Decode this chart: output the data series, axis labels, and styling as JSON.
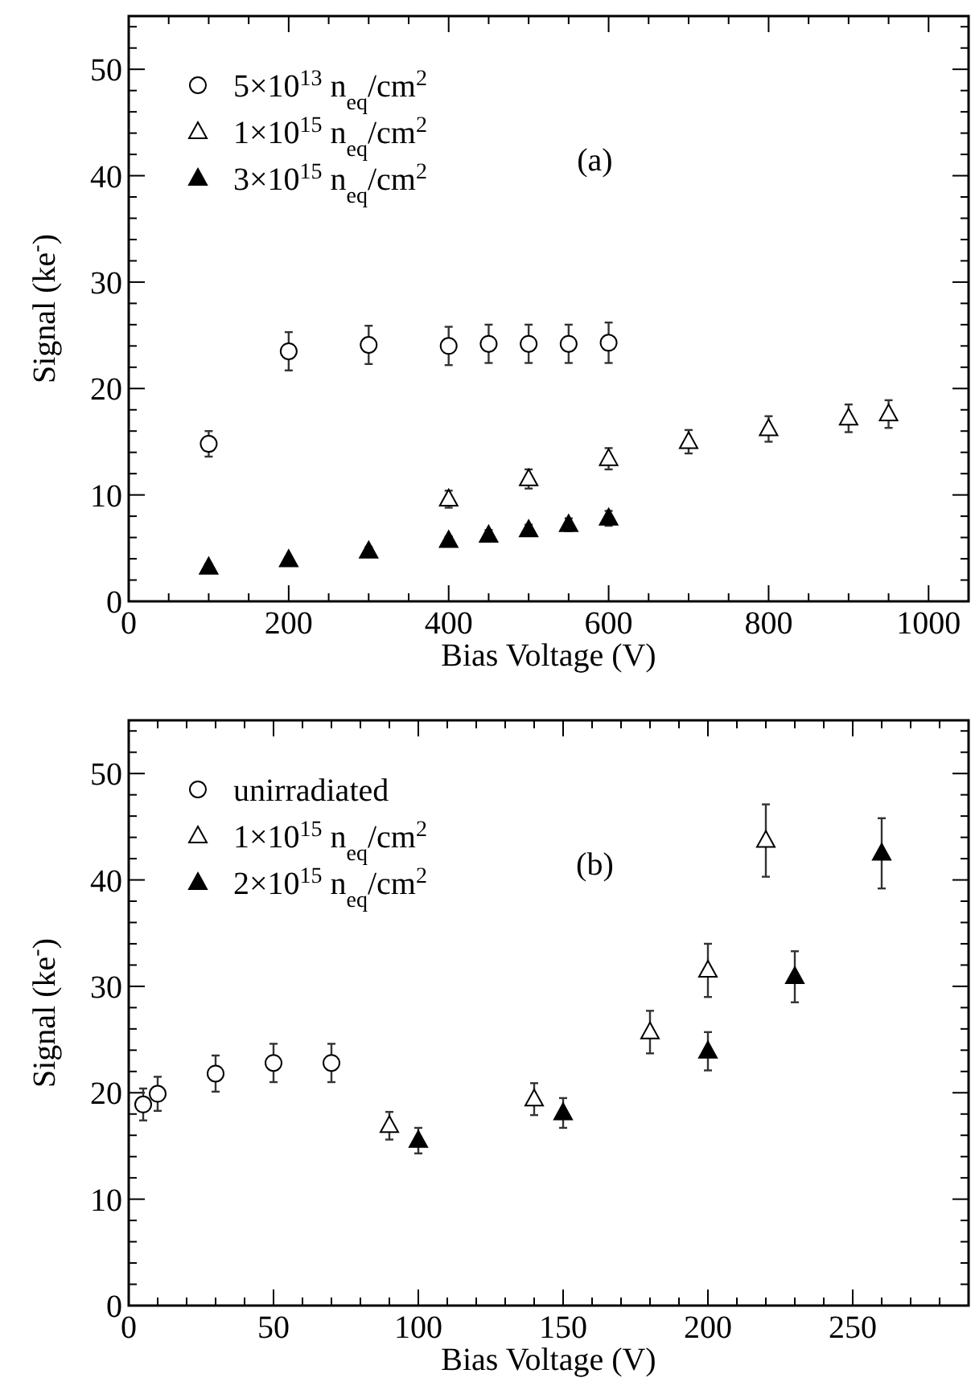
{
  "chart_data": [
    {
      "type": "scatter",
      "xlabel": "Bias Voltage (V)",
      "ylabel": "Signal (ke$^{-}$)",
      "annotations": [
        "(a)"
      ],
      "xlim": [
        0,
        1050
      ],
      "ylim": [
        0,
        55
      ],
      "xticks": [
        0,
        {
          "value": 50,
          "label": null
        },
        {
          "value": 100,
          "label": null
        },
        {
          "value": 150,
          "label": null
        },
        200,
        {
          "value": 250,
          "label": null
        },
        {
          "value": 300,
          "label": null
        },
        {
          "value": 350,
          "label": null
        },
        400,
        {
          "value": 450,
          "label": null
        },
        {
          "value": 500,
          "label": null
        },
        {
          "value": 550,
          "label": null
        },
        600,
        {
          "value": 650,
          "label": null
        },
        {
          "value": 700,
          "label": null
        },
        {
          "value": 750,
          "label": null
        },
        800,
        {
          "value": 850,
          "label": null
        },
        {
          "value": 900,
          "label": null
        },
        {
          "value": 950,
          "label": null
        },
        1000
      ],
      "yticks": [
        0,
        {
          "value": 2,
          "label": null
        },
        {
          "value": 4,
          "label": null
        },
        {
          "value": 6,
          "label": null
        },
        {
          "value": 8,
          "label": null
        },
        10,
        {
          "value": 12,
          "label": null
        },
        {
          "value": 14,
          "label": null
        },
        {
          "value": 16,
          "label": null
        },
        {
          "value": 18,
          "label": null
        },
        20,
        {
          "value": 22,
          "label": null
        },
        {
          "value": 24,
          "label": null
        },
        {
          "value": 26,
          "label": null
        },
        {
          "value": 28,
          "label": null
        },
        30,
        {
          "value": 32,
          "label": null
        },
        {
          "value": 34,
          "label": null
        },
        {
          "value": 36,
          "label": null
        },
        {
          "value": 38,
          "label": null
        },
        40,
        {
          "value": 42,
          "label": null
        },
        {
          "value": 44,
          "label": null
        },
        {
          "value": 46,
          "label": null
        },
        {
          "value": 48,
          "label": null
        },
        50,
        {
          "value": 52,
          "label": null
        },
        {
          "value": 54,
          "label": null
        }
      ],
      "legend": "top left",
      "grid": false,
      "series": [
        {
          "name": "5×10$^{13}$ n$_{eq}$/cm$^{2}$",
          "color": "#ffffff",
          "marker": "circle",
          "x": [
            100,
            200,
            300,
            400,
            450,
            500,
            550,
            600
          ],
          "values": [
            14.8,
            23.5,
            24.1,
            24.0,
            24.2,
            24.2,
            24.2,
            24.3
          ],
          "errors": [
            1.2,
            1.8,
            1.8,
            1.8,
            1.8,
            1.8,
            1.8,
            1.9
          ]
        },
        {
          "name": "1×10$^{15}$ n$_{eq}$/cm$^{2}$",
          "color": "#ffffff",
          "marker": "triangle",
          "x": [
            400,
            500,
            600,
            700,
            800,
            900,
            950
          ],
          "values": [
            9.6,
            11.5,
            13.4,
            15.0,
            16.2,
            17.2,
            17.6
          ],
          "errors": [
            0.8,
            0.9,
            1.0,
            1.1,
            1.2,
            1.3,
            1.3
          ]
        },
        {
          "name": "3×10$^{15}$ n$_{eq}$/cm$^{2}$",
          "color": "#000000",
          "marker": "triangle",
          "x": [
            100,
            200,
            300,
            400,
            450,
            500,
            550,
            600
          ],
          "values": [
            3.2,
            3.9,
            4.7,
            5.7,
            6.2,
            6.7,
            7.2,
            7.8
          ],
          "errors": [
            0.3,
            0.3,
            0.4,
            0.4,
            0.5,
            0.5,
            0.6,
            0.7
          ]
        }
      ]
    },
    {
      "type": "scatter",
      "xlabel": "Bias Voltage (V)",
      "ylabel": "Signal (ke$^{-}$)",
      "annotations": [
        "(b)"
      ],
      "xlim": [
        0,
        290
      ],
      "ylim": [
        0,
        55
      ],
      "xticks": [
        0,
        {
          "value": 10,
          "label": null
        },
        {
          "value": 20,
          "label": null
        },
        {
          "value": 30,
          "label": null
        },
        {
          "value": 40,
          "label": null
        },
        50,
        {
          "value": 60,
          "label": null
        },
        {
          "value": 70,
          "label": null
        },
        {
          "value": 80,
          "label": null
        },
        {
          "value": 90,
          "label": null
        },
        100,
        {
          "value": 110,
          "label": null
        },
        {
          "value": 120,
          "label": null
        },
        {
          "value": 130,
          "label": null
        },
        {
          "value": 140,
          "label": null
        },
        150,
        {
          "value": 160,
          "label": null
        },
        {
          "value": 170,
          "label": null
        },
        {
          "value": 180,
          "label": null
        },
        {
          "value": 190,
          "label": null
        },
        200,
        {
          "value": 210,
          "label": null
        },
        {
          "value": 220,
          "label": null
        },
        {
          "value": 230,
          "label": null
        },
        {
          "value": 240,
          "label": null
        },
        250,
        {
          "value": 260,
          "label": null
        },
        {
          "value": 270,
          "label": null
        },
        {
          "value": 280,
          "label": null
        }
      ],
      "yticks": [
        0,
        {
          "value": 2,
          "label": null
        },
        {
          "value": 4,
          "label": null
        },
        {
          "value": 6,
          "label": null
        },
        {
          "value": 8,
          "label": null
        },
        10,
        {
          "value": 12,
          "label": null
        },
        {
          "value": 14,
          "label": null
        },
        {
          "value": 16,
          "label": null
        },
        {
          "value": 18,
          "label": null
        },
        20,
        {
          "value": 22,
          "label": null
        },
        {
          "value": 24,
          "label": null
        },
        {
          "value": 26,
          "label": null
        },
        {
          "value": 28,
          "label": null
        },
        30,
        {
          "value": 32,
          "label": null
        },
        {
          "value": 34,
          "label": null
        },
        {
          "value": 36,
          "label": null
        },
        {
          "value": 38,
          "label": null
        },
        40,
        {
          "value": 42,
          "label": null
        },
        {
          "value": 44,
          "label": null
        },
        {
          "value": 46,
          "label": null
        },
        {
          "value": 48,
          "label": null
        },
        50,
        {
          "value": 52,
          "label": null
        },
        {
          "value": 54,
          "label": null
        }
      ],
      "legend": "top left",
      "grid": false,
      "series": [
        {
          "name": "unirradiated",
          "color": "#ffffff",
          "marker": "circle",
          "x": [
            5,
            10,
            30,
            50,
            70
          ],
          "values": [
            18.9,
            19.9,
            21.8,
            22.8,
            22.8
          ],
          "errors": [
            1.5,
            1.6,
            1.7,
            1.8,
            1.8
          ]
        },
        {
          "name": "1×10$^{15}$ n$_{eq}$/cm$^{2}$",
          "color": "#ffffff",
          "marker": "triangle",
          "x": [
            90,
            140,
            180,
            200,
            220
          ],
          "values": [
            16.9,
            19.4,
            25.7,
            31.5,
            43.7
          ],
          "errors": [
            1.3,
            1.5,
            2.0,
            2.5,
            3.4
          ]
        },
        {
          "name": "2×10$^{15}$ n$_{eq}$/cm$^{2}$",
          "color": "#000000",
          "marker": "triangle",
          "x": [
            100,
            150,
            200,
            230,
            260
          ],
          "values": [
            15.5,
            18.1,
            23.9,
            30.9,
            42.5
          ],
          "errors": [
            1.2,
            1.4,
            1.8,
            2.4,
            3.3
          ]
        }
      ]
    }
  ]
}
